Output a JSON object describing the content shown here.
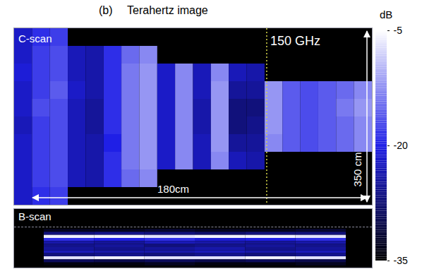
{
  "chart_data": {
    "type": "heatmap",
    "panel_label": "(b)",
    "title": "Terahertz image",
    "tick_labels": false,
    "c_scan": {
      "label": "C-scan",
      "frequency_label": "150 GHz",
      "width_label": "180cm",
      "height_label": "350 cm",
      "guide_line": {
        "x": 14.1,
        "color": "#d8d84a",
        "line_style": "dotted"
      },
      "cells": [
        [
          -22,
          -19,
          -18,
          null,
          null,
          null,
          null,
          null,
          null,
          null,
          null,
          null,
          null,
          null,
          null,
          null,
          null,
          null,
          null,
          null
        ],
        [
          -22,
          -18,
          -17,
          -23,
          -24,
          -19,
          -15,
          -13,
          null,
          null,
          null,
          null,
          null,
          null,
          null,
          null,
          null,
          null,
          null,
          null
        ],
        [
          -21,
          -18,
          -17,
          -23,
          -24,
          -19,
          -14,
          -12,
          -22,
          -13,
          -23,
          -13,
          -23,
          -24,
          null,
          null,
          null,
          null,
          null,
          null
        ],
        [
          -22,
          -18,
          -16,
          -22,
          -24,
          -19,
          -14,
          -12,
          -22,
          -13,
          -23,
          -12,
          -25,
          -25,
          -12,
          -16,
          -17,
          -16,
          -15,
          -13
        ],
        [
          -22,
          -17,
          -17,
          -23,
          -25,
          -19,
          -14,
          -12,
          -22,
          -13,
          -24,
          -12,
          -27,
          -27,
          -12,
          -16,
          -17,
          -16,
          -14,
          -12
        ],
        [
          -23,
          -18,
          -17,
          -23,
          -25,
          -19,
          -14,
          -12,
          -22,
          -13,
          -24,
          -12,
          -27,
          -26,
          -12,
          -16,
          -17,
          -16,
          -15,
          -13
        ],
        [
          -22,
          -18,
          -17,
          -23,
          -24,
          -20,
          -14,
          -12,
          -22,
          -13,
          -23,
          -12,
          -25,
          -25,
          -13,
          -16,
          -17,
          -16,
          -15,
          -13
        ],
        [
          -22,
          -18,
          -17,
          -23,
          -24,
          -19,
          -14,
          -12,
          -22,
          -13,
          -23,
          -13,
          -23,
          -24,
          null,
          null,
          null,
          null,
          null,
          null
        ],
        [
          -22,
          -18,
          -17,
          -23,
          -24,
          -19,
          -15,
          -13,
          null,
          null,
          null,
          null,
          null,
          null,
          null,
          null,
          null,
          null,
          null,
          null
        ],
        [
          -22,
          -19,
          -18,
          null,
          null,
          null,
          null,
          null,
          null,
          null,
          null,
          null,
          null,
          null,
          null,
          null,
          null,
          null,
          null,
          null
        ]
      ]
    },
    "b_scan": {
      "label": "B-scan",
      "cells": [
        [
          -33,
          -33,
          -32,
          -33,
          -33,
          -32
        ],
        [
          -27,
          -26,
          -27,
          -28,
          -27,
          -27
        ],
        [
          -6,
          -6,
          -7,
          -6,
          -6,
          -7
        ],
        [
          -19,
          -20,
          -19,
          -21,
          -20,
          -19
        ],
        [
          -24,
          -25,
          -23,
          -24,
          -25,
          -24
        ],
        [
          -26,
          -25,
          -27,
          -26,
          -25,
          -26
        ],
        [
          -25,
          -26,
          -25,
          -24,
          -26,
          -25
        ],
        [
          -23,
          -24,
          -24,
          -23,
          -24,
          -23
        ],
        [
          -27,
          -26,
          -27,
          -26,
          -27,
          -26
        ],
        [
          -7,
          -6,
          -7,
          -7,
          -6,
          -7
        ],
        [
          -29,
          -30,
          -29,
          -30,
          -29,
          -30
        ],
        [
          -34,
          -34,
          -33,
          -34,
          -34,
          -33
        ]
      ]
    },
    "colorbar": {
      "label": "dB",
      "range": [
        -35,
        -5
      ],
      "ticks": [
        -5,
        -20,
        -35
      ],
      "colors": [
        "#000000",
        "#1f1fe6",
        "#ffffff"
      ]
    }
  }
}
